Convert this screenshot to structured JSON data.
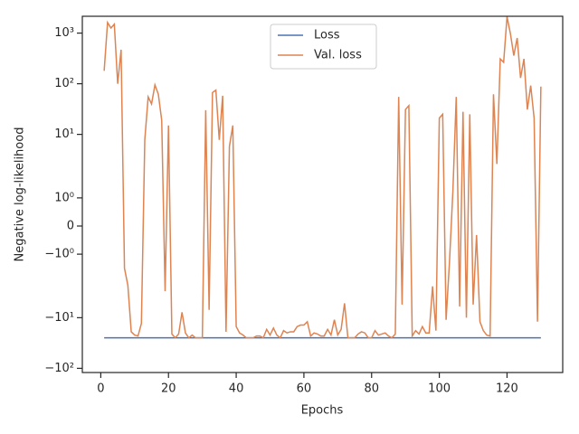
{
  "chart_data": {
    "type": "line",
    "xlabel": "Epochs",
    "ylabel": "Negative log-likelihood",
    "yscale": "symlog",
    "linthresh": 2,
    "xlim": [
      -5.45,
      136.45
    ],
    "xticks": [
      0,
      20,
      40,
      60,
      80,
      100,
      120
    ],
    "ylim": [
      -121,
      2150
    ],
    "yticks": [
      {
        "value": 1000,
        "label": "10³"
      },
      {
        "value": 100,
        "label": "10²"
      },
      {
        "value": 10,
        "label": "10¹"
      },
      {
        "value": 1,
        "label": "10⁰"
      },
      0,
      {
        "value": -1,
        "label": "−10⁰"
      },
      {
        "value": -10,
        "label": "−10¹"
      },
      {
        "value": -100,
        "label": "−10²"
      }
    ],
    "legend": "upper center",
    "grid": false,
    "x": [
      1,
      2,
      3,
      4,
      5,
      6,
      7,
      8,
      9,
      10,
      11,
      12,
      13,
      14,
      15,
      16,
      17,
      18,
      19,
      20,
      21,
      22,
      23,
      24,
      25,
      26,
      27,
      28,
      29,
      30,
      31,
      32,
      33,
      34,
      35,
      36,
      37,
      38,
      39,
      40,
      41,
      42,
      43,
      44,
      45,
      46,
      47,
      48,
      49,
      50,
      51,
      52,
      53,
      54,
      55,
      56,
      57,
      58,
      59,
      60,
      61,
      62,
      63,
      64,
      65,
      66,
      67,
      68,
      69,
      70,
      71,
      72,
      73,
      74,
      75,
      76,
      77,
      78,
      79,
      80,
      81,
      82,
      83,
      84,
      85,
      86,
      87,
      88,
      89,
      90,
      91,
      92,
      93,
      94,
      95,
      96,
      97,
      98,
      99,
      100,
      101,
      102,
      103,
      104,
      105,
      106,
      107,
      108,
      109,
      110,
      111,
      112,
      113,
      114,
      115,
      116,
      117,
      118,
      119,
      120,
      121,
      122,
      123,
      124,
      125,
      126,
      127,
      128,
      129,
      130
    ],
    "series": [
      {
        "name": "Loss",
        "color": "#4c72b0",
        "values": [
          -25,
          -25,
          -25,
          -25,
          -25,
          -25,
          -25,
          -25,
          -25,
          -25,
          -25,
          -25,
          -25,
          -25,
          -25,
          -25,
          -25,
          -25,
          -25,
          -25,
          -25,
          -25,
          -25,
          -25,
          -25,
          -25,
          -25,
          -25,
          -25,
          -25,
          -25,
          -25,
          -25,
          -25,
          -25,
          -25,
          -25,
          -25,
          -25,
          -25,
          -25,
          -25,
          -25,
          -25,
          -25,
          -25,
          -25,
          -25,
          -25,
          -25,
          -25,
          -25,
          -25,
          -25,
          -25,
          -25,
          -25,
          -25,
          -25,
          -25,
          -25,
          -25,
          -25,
          -25,
          -25,
          -25,
          -25,
          -25,
          -25,
          -25,
          -25,
          -25,
          -25,
          -25,
          -25,
          -25,
          -25,
          -25,
          -25,
          -25,
          -25,
          -25,
          -25,
          -25,
          -25,
          -25,
          -25,
          -25,
          -25,
          -25,
          -25,
          -25,
          -25,
          -25,
          -25,
          -25,
          -25,
          -25,
          -25,
          -25,
          -25,
          -25,
          -25,
          -25,
          -25,
          -25,
          -25,
          -25,
          -25,
          -25,
          -25,
          -25,
          -25,
          -25,
          -25,
          -25,
          -25,
          -25,
          -25,
          -25,
          -25,
          -25,
          -25,
          -25,
          -25,
          -25,
          -25,
          -25,
          -25,
          -25
        ]
      },
      {
        "name": "Val. loss",
        "color": "#dd8452",
        "values": [
          180,
          1620,
          1260,
          1500,
          100,
          470,
          -1.5,
          -2.3,
          -19,
          -22,
          -23,
          -13,
          7.8,
          55,
          40,
          95,
          62,
          19,
          -3,
          15,
          -21,
          -25,
          -21,
          -7.8,
          -20,
          -25,
          -22,
          -25,
          -25,
          -25,
          30,
          -7,
          67,
          75,
          7.8,
          58,
          -19,
          5.8,
          15,
          -15,
          -20,
          -22,
          -25,
          -25,
          -25,
          -23,
          -23,
          -25,
          -17,
          -22,
          -16,
          -22,
          -25,
          -18,
          -20,
          -19,
          -19,
          -15,
          -14,
          -14,
          -12,
          -23,
          -20,
          -21,
          -23,
          -23,
          -17,
          -22,
          -11,
          -22,
          -17,
          -5.2,
          -25,
          -25,
          -25,
          -21,
          -19,
          -20,
          -25,
          -25,
          -18,
          -22,
          -21,
          -20,
          -23,
          -25,
          -21,
          55,
          -5.5,
          31,
          37,
          -23,
          -18,
          -21,
          -15,
          -20,
          -20,
          -2.4,
          -18,
          21,
          25,
          -11,
          -1.28,
          1.22,
          55,
          -6,
          28,
          -10,
          25,
          -5.5,
          -0.32,
          -12,
          -18,
          -22,
          -23,
          62,
          2.6,
          310,
          265,
          2100,
          980,
          360,
          800,
          130,
          310,
          31,
          92,
          21,
          -12,
          88
        ]
      }
    ]
  }
}
